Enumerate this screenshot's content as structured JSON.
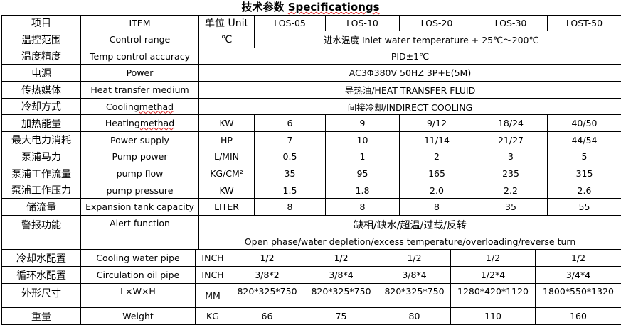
{
  "title": {
    "cn": "技术参数",
    "en": "Specificationgs"
  },
  "header": [
    "项目",
    "ITEM",
    "单位 Unit",
    "LOS-05",
    "LOS-10",
    "LOS-20",
    "LOS-30",
    "LOST-50"
  ],
  "rows": [
    {
      "cn": "温控范围",
      "en": "Control range",
      "unit": "℃",
      "merged": "进水温度 Inlet water temperature + 25℃～200℃"
    },
    {
      "cn": "温度精度",
      "en": "Temp control accuracy",
      "merged": "PID±1℃"
    },
    {
      "cn": "电源",
      "en": "Power",
      "merged": "AC3Φ380V 50HZ 3P+E(5M)"
    },
    {
      "cn": "传热媒体",
      "en": "Heat transfer medium",
      "merged": "导热油/HEAT TRANSFER FLUID"
    },
    {
      "cn": "冷却方式",
      "en": "Cooling methad",
      "merged": "间接冷却/INDIRECT COOLING"
    },
    {
      "cn": "加热能量",
      "en": "Heating methad",
      "unit": "KW",
      "values": [
        "6",
        "9",
        "9/12",
        "18/24",
        "40/50"
      ]
    },
    {
      "cn": "最大电力消耗",
      "en": "Power supply",
      "unit": "HP",
      "values": [
        "7",
        "10",
        "11/14",
        "21/27",
        "44/54"
      ]
    },
    {
      "cn": "泵浦马力",
      "en": "Pump power",
      "unit": "L/MIN",
      "values": [
        "0.5",
        "1",
        "2",
        "3",
        "5"
      ]
    },
    {
      "cn": "泵浦工作流量",
      "en": "pump flow",
      "unit": "KG/CM²",
      "values": [
        "35",
        "95",
        "165",
        "235",
        "315"
      ]
    },
    {
      "cn": "泵浦工作压力",
      "en": "pump pressure",
      "unit": "KW",
      "values": [
        "1.5",
        "1.8",
        "2.0",
        "2.2",
        "2.6"
      ]
    },
    {
      "cn": "储流量",
      "en": "Expansion tank capacity",
      "unit": "LITER",
      "values": [
        "8",
        "8",
        "8",
        "35",
        "55"
      ]
    },
    {
      "cn": "警报功能",
      "en": "Alert function",
      "merged": "缺相/缺水/超温/过载/反转",
      "merged2": "Open phase/water depletion/excess temperature/overloading/reverse turn"
    },
    {
      "cn": "冷却水配置",
      "en": "Cooling water pipe",
      "unit": "INCH",
      "values": [
        "1/2",
        "1/2",
        "1/2",
        "1/2",
        "1/2"
      ]
    },
    {
      "cn": "循环水配置",
      "en": "Circulation oil pipe",
      "unit": "INCH",
      "values": [
        "3/8*2",
        "3/8*4",
        "3/8*4",
        "1/2*4",
        "3/4*4"
      ]
    },
    {
      "cn": "外形尺寸",
      "en": "L×W×H",
      "unit": "MM",
      "values": [
        "820*325*750",
        "820*325*750",
        "820*325*750",
        "1280*420*1120",
        "1800*550*1320"
      ]
    },
    {
      "cn": "重量",
      "en": "Weight",
      "unit": "KG",
      "values": [
        "66",
        "75",
        "80",
        "110",
        "160"
      ]
    }
  ]
}
